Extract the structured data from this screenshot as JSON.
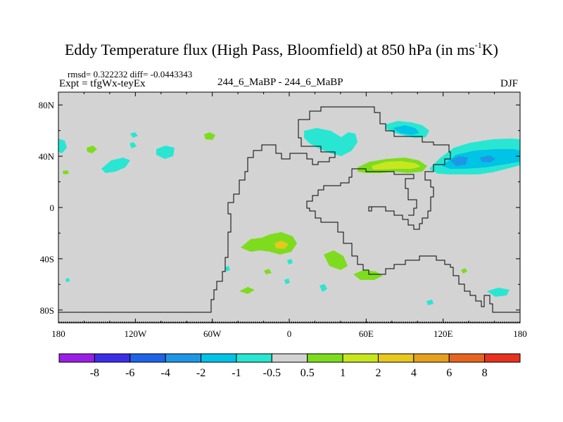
{
  "title": {
    "main": "Eddy Temperature flux (High Pass, Bloomfield) at 850 hPa (in ms",
    "sup": "-1",
    "tail": "K)"
  },
  "stats": "rmsd= 0.322232 diff= -0.0443343",
  "expt": "Expt = tfgWx-teyEx",
  "runs": "244_6_MaBP - 244_6_MaBP",
  "season": "DJF",
  "map": {
    "lon_range": [
      -180,
      180
    ],
    "lat_range": [
      -90,
      90
    ],
    "x_tick_labels": [
      "180",
      "120W",
      "60W",
      "0",
      "60E",
      "120E",
      "180"
    ],
    "y_tick_labels": [
      "80N",
      "40N",
      "0",
      "40S",
      "80S"
    ],
    "background_color": "#d3d3d3"
  },
  "colorbar": {
    "labels": [
      "-8",
      "-6",
      "-4",
      "-2",
      "-1",
      "-0.5",
      "0.5",
      "1",
      "2",
      "4",
      "6",
      "8"
    ],
    "colors": [
      "#9b1ee6",
      "#3c2ee6",
      "#1e64e6",
      "#1e96e6",
      "#00c3e6",
      "#28e6d2",
      "#d3d3d3",
      "#7ddc1e",
      "#c8e61e",
      "#e6c81e",
      "#e6a01e",
      "#e6641e",
      "#e6321e"
    ]
  }
}
